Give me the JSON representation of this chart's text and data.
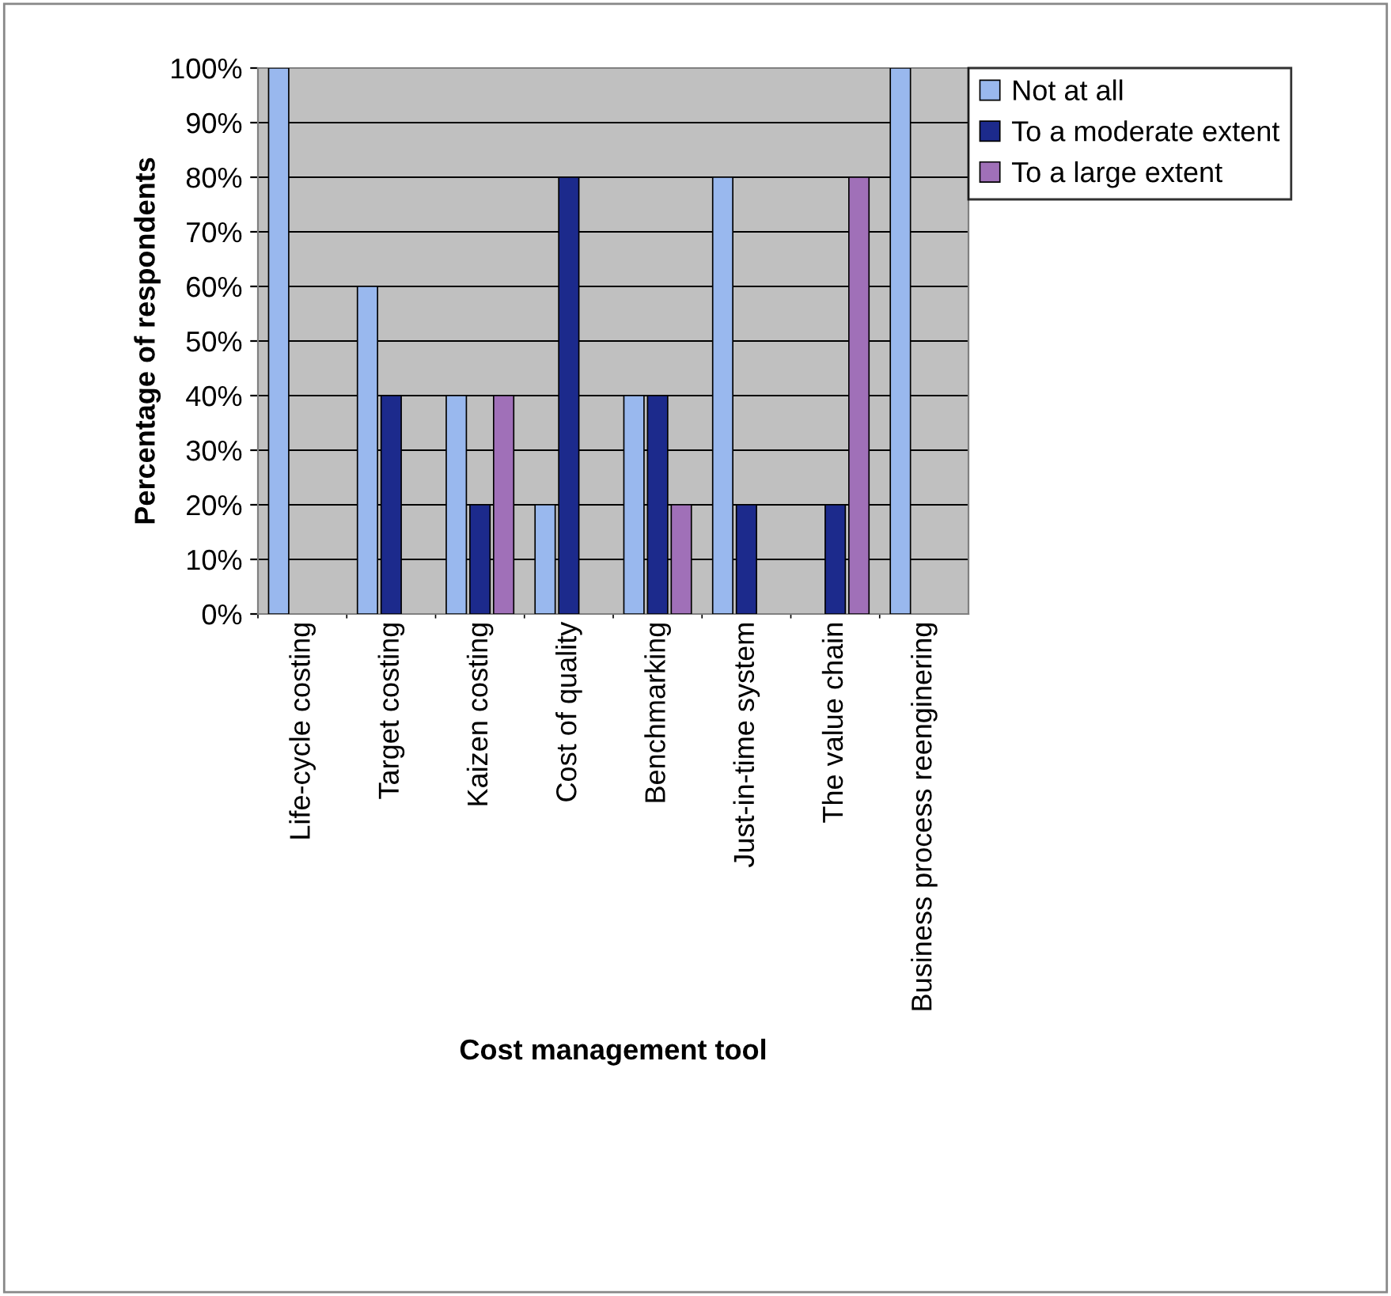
{
  "chart_data": {
    "type": "bar",
    "xlabel": "Cost management tool",
    "ylabel": "Percentage of respondents",
    "categories": [
      "Life-cycle costing",
      "Target costing",
      "Kaizen costing",
      "Cost of quality",
      "Benchmarking",
      "Just-in-time system",
      "The value chain",
      "Business process reenginering"
    ],
    "series": [
      {
        "name": "Not at all",
        "color": "#99b8ee",
        "values": [
          100,
          60,
          40,
          20,
          40,
          80,
          0,
          100
        ]
      },
      {
        "name": "To a moderate extent",
        "color": "#1c2a8c",
        "values": [
          0,
          40,
          20,
          80,
          40,
          20,
          20,
          0
        ]
      },
      {
        "name": "To a large extent",
        "color": "#a070b8",
        "values": [
          0,
          0,
          40,
          0,
          20,
          0,
          80,
          0
        ]
      }
    ],
    "ylim": [
      0,
      100
    ],
    "yticks": [
      {
        "value": 0,
        "label": "0%"
      },
      {
        "value": 10,
        "label": "10%"
      },
      {
        "value": 20,
        "label": "20%"
      },
      {
        "value": 30,
        "label": "30%"
      },
      {
        "value": 40,
        "label": "40%"
      },
      {
        "value": 50,
        "label": "50%"
      },
      {
        "value": 60,
        "label": "60%"
      },
      {
        "value": 70,
        "label": "70%"
      },
      {
        "value": 80,
        "label": "80%"
      },
      {
        "value": 90,
        "label": "90%"
      },
      {
        "value": 100,
        "label": "100%"
      }
    ],
    "grid": "y",
    "legend": "top right"
  }
}
